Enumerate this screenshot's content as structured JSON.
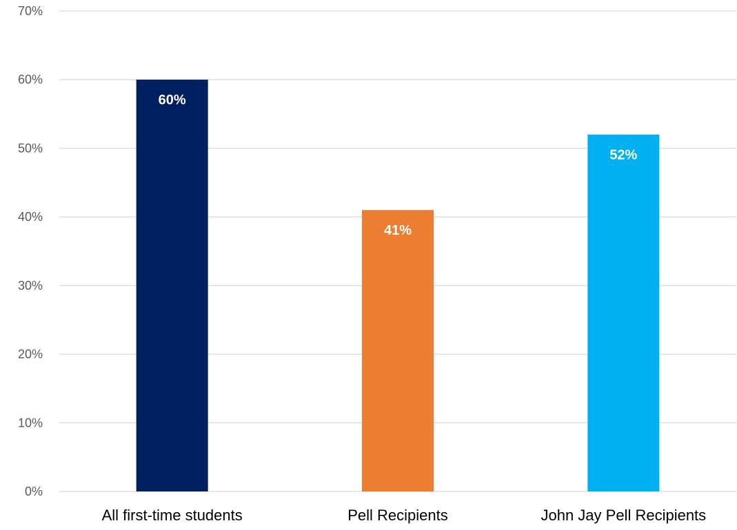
{
  "chart_data": {
    "type": "bar",
    "title": "",
    "categories": [
      "All first-time students",
      "Pell Recipients",
      "John Jay Pell Recipients"
    ],
    "values": [
      60,
      41,
      52
    ],
    "data_labels": [
      "60%",
      "41%",
      "52%"
    ],
    "colors": [
      "#002060",
      "#ED7D31",
      "#00B0F0"
    ],
    "ylim": [
      0,
      70
    ],
    "y_ticks": [
      0,
      10,
      20,
      30,
      40,
      50,
      60,
      70
    ],
    "y_tick_labels": [
      "0%",
      "10%",
      "20%",
      "30%",
      "40%",
      "50%",
      "60%",
      "70%"
    ],
    "xlabel": "",
    "ylabel": "",
    "grid": true,
    "legend": "none"
  }
}
